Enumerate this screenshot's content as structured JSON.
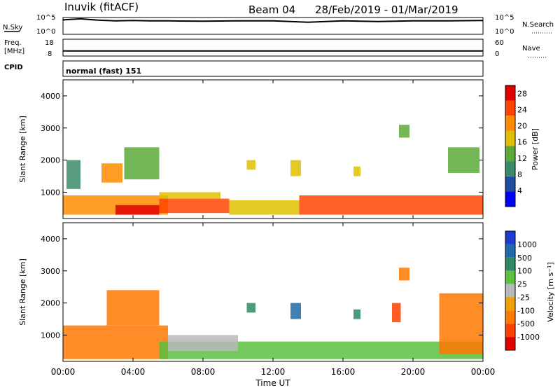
{
  "header": {
    "station": "Inuvik (fitACF)",
    "beam": "Beam 04",
    "date_range": "28/Feb/2019 - 01/Mar/2019"
  },
  "noise_panel": {
    "left_label": "N.Sky",
    "left_ticks": [
      "10^5",
      "10^0"
    ],
    "right_ticks": [
      "10^5",
      "10^0"
    ],
    "right_label": "N.Search"
  },
  "freq_panel": {
    "left_label_1": "Freq.",
    "left_label_2": "[MHz]",
    "left_ticks": [
      "18",
      "8"
    ],
    "right_ticks": [
      "60",
      "0"
    ],
    "right_label": "Nave"
  },
  "cpid_panel": {
    "label": "CPID",
    "mode_text": "normal (fast) 151"
  },
  "power_panel": {
    "ylabel": "Slant Range [km]",
    "colorbar_label": "Power [dB]",
    "colorbar_ticks": [
      "28",
      "24",
      "20",
      "16",
      "12",
      "8",
      "4"
    ],
    "colors": [
      "#0000ff",
      "#1f4e9c",
      "#3a8a6a",
      "#5aaa3a",
      "#e0c000",
      "#ff8c00",
      "#ff4500",
      "#e00000"
    ]
  },
  "velocity_panel": {
    "ylabel": "Slant Range [km]",
    "colorbar_label": "Velocity [m s⁻¹]",
    "colorbar_ticks": [
      "1000",
      "500",
      "100",
      "25",
      "-25",
      "-100",
      "-500",
      "-1000"
    ],
    "colors": [
      "#1f3ad0",
      "#1f6aa8",
      "#2e8a66",
      "#5cc040",
      "#b8b8b8",
      "#f0a000",
      "#ff7800",
      "#ff4000",
      "#e00000"
    ]
  },
  "xaxis": {
    "label": "Time UT",
    "ticks": [
      "00:00",
      "04:00",
      "08:00",
      "12:00",
      "16:00",
      "20:00",
      "00:00"
    ]
  },
  "chart_data": [
    {
      "type": "line",
      "title": "N.Sky",
      "x": [
        0,
        1,
        2,
        3,
        4,
        5,
        6,
        8,
        10,
        12,
        14,
        16,
        18,
        20,
        22,
        24
      ],
      "y_log10": [
        4.3,
        4.6,
        4.2,
        4.0,
        4.1,
        4.0,
        4.0,
        3.9,
        4.0,
        4.0,
        3.6,
        4.0,
        3.8,
        4.0,
        4.0,
        4.1
      ],
      "ylim_log10": [
        0,
        5
      ],
      "xunit": "hours UT"
    },
    {
      "type": "line",
      "title": "Freq. [MHz]",
      "x": [
        0,
        24
      ],
      "y": [
        11,
        11
      ],
      "ylim": [
        8,
        18
      ]
    },
    {
      "type": "line",
      "title": "Nave",
      "x": [
        0,
        24
      ],
      "y": [
        18,
        18
      ],
      "ylim": [
        0,
        60
      ]
    },
    {
      "type": "heatmap",
      "title": "Power [dB]",
      "xlabel": "Time UT",
      "ylabel": "Slant Range [km]",
      "xlim_hours": [
        0,
        24
      ],
      "ylim_km": [
        180,
        4500
      ],
      "color_range": [
        0,
        30
      ],
      "patches": [
        {
          "t0": 0.0,
          "t1": 6.0,
          "r0": 300,
          "r1": 900,
          "value": 22
        },
        {
          "t0": 3.0,
          "t1": 5.5,
          "r0": 300,
          "r1": 600,
          "value": 27
        },
        {
          "t0": 5.5,
          "t1": 9.5,
          "r0": 350,
          "r1": 800,
          "value": 24
        },
        {
          "t0": 5.5,
          "t1": 9.0,
          "r0": 800,
          "r1": 1000,
          "value": 18
        },
        {
          "t0": 9.5,
          "t1": 13.5,
          "r0": 300,
          "r1": 750,
          "value": 15
        },
        {
          "t0": 13.5,
          "t1": 24.0,
          "r0": 300,
          "r1": 900,
          "value": 24
        },
        {
          "t0": 0.2,
          "t1": 1.0,
          "r0": 1100,
          "r1": 2000,
          "value": 8
        },
        {
          "t0": 2.2,
          "t1": 3.4,
          "r0": 1300,
          "r1": 1900,
          "value": 20
        },
        {
          "t0": 3.5,
          "t1": 5.5,
          "r0": 1400,
          "r1": 2400,
          "value": 12
        },
        {
          "t0": 10.5,
          "t1": 11.0,
          "r0": 1700,
          "r1": 2000,
          "value": 16
        },
        {
          "t0": 13.0,
          "t1": 13.6,
          "r0": 1500,
          "r1": 2000,
          "value": 16
        },
        {
          "t0": 16.6,
          "t1": 17.0,
          "r0": 1500,
          "r1": 1800,
          "value": 16
        },
        {
          "t0": 19.2,
          "t1": 19.8,
          "r0": 2700,
          "r1": 3100,
          "value": 12
        },
        {
          "t0": 22.0,
          "t1": 23.8,
          "r0": 1600,
          "r1": 2400,
          "value": 12
        }
      ]
    },
    {
      "type": "heatmap",
      "title": "Velocity [m s⁻¹]",
      "xlabel": "Time UT",
      "ylabel": "Slant Range [km]",
      "xlim_hours": [
        0,
        24
      ],
      "ylim_km": [
        180,
        4500
      ],
      "color_levels": [
        -1000,
        -500,
        -100,
        -25,
        25,
        100,
        500,
        1000
      ],
      "patches": [
        {
          "t0": 0.0,
          "t1": 6.0,
          "r0": 250,
          "r1": 1300,
          "value": -150
        },
        {
          "t0": 2.5,
          "t1": 5.5,
          "r0": 1300,
          "r1": 2400,
          "value": -150
        },
        {
          "t0": 5.5,
          "t1": 13.0,
          "r0": 250,
          "r1": 800,
          "value": 60
        },
        {
          "t0": 6.0,
          "t1": 10.0,
          "r0": 500,
          "r1": 1000,
          "value": 0
        },
        {
          "t0": 13.0,
          "t1": 24.0,
          "r0": 250,
          "r1": 800,
          "value": 60
        },
        {
          "t0": 21.5,
          "t1": 24.0,
          "r0": 400,
          "r1": 2300,
          "value": -200
        },
        {
          "t0": 10.5,
          "t1": 11.0,
          "r0": 1700,
          "r1": 2000,
          "value": 400
        },
        {
          "t0": 13.0,
          "t1": 13.6,
          "r0": 1500,
          "r1": 2000,
          "value": 600
        },
        {
          "t0": 16.6,
          "t1": 17.0,
          "r0": 1500,
          "r1": 1800,
          "value": 300
        },
        {
          "t0": 19.2,
          "t1": 19.8,
          "r0": 2700,
          "r1": 3100,
          "value": -300
        },
        {
          "t0": 18.8,
          "t1": 19.3,
          "r0": 1400,
          "r1": 2000,
          "value": -700
        }
      ]
    }
  ]
}
